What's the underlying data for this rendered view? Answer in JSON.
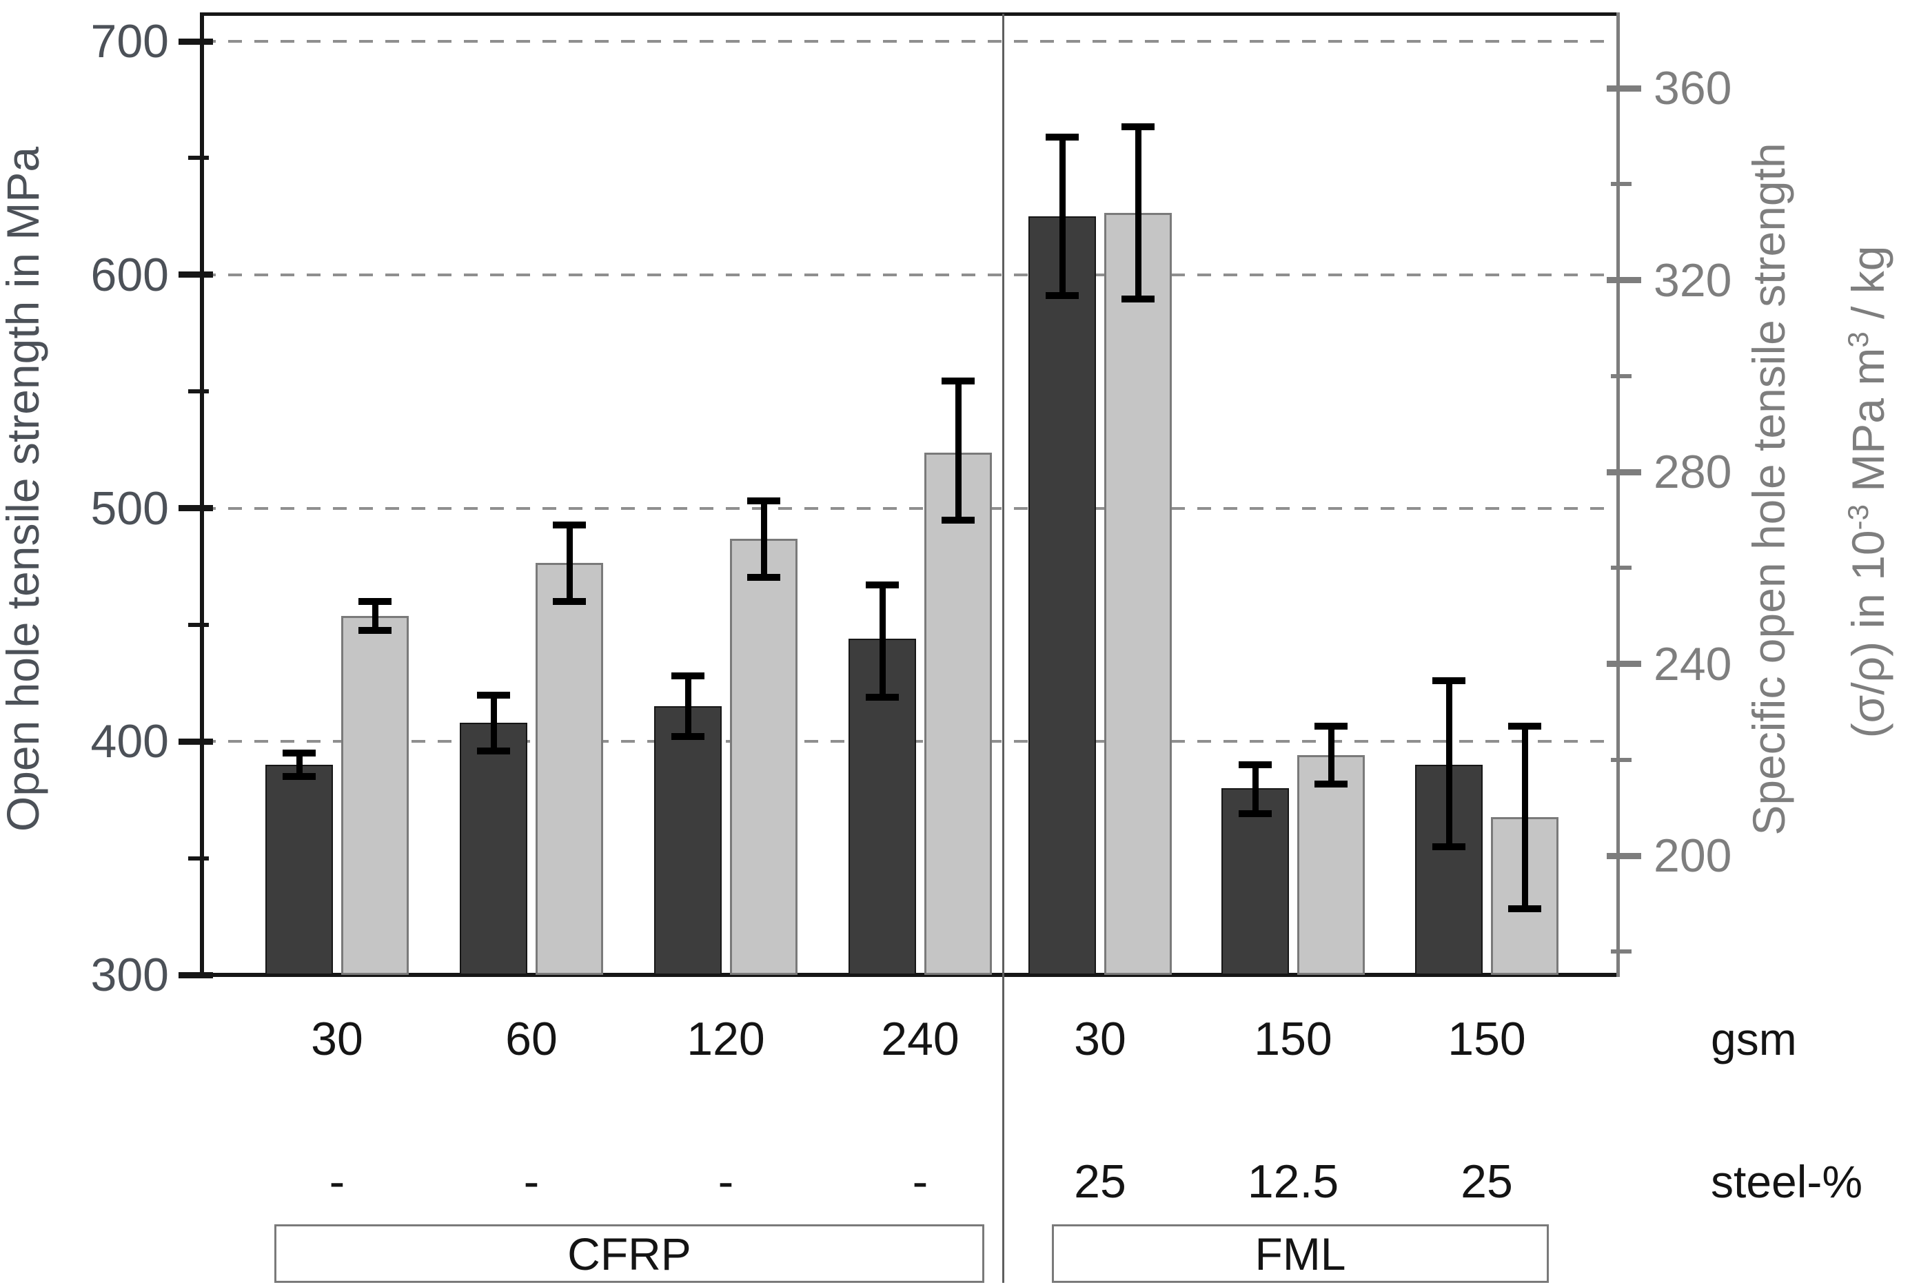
{
  "chart_data": {
    "type": "bar",
    "title": "",
    "left_axis": {
      "label": "Open hole tensile strength in MPa",
      "min": 300,
      "max": 700,
      "major_ticks": [
        300,
        400,
        500,
        600,
        700
      ],
      "minor_ticks": [
        350,
        450,
        550,
        650
      ],
      "gridlines_at": [
        400,
        500,
        600,
        700
      ],
      "grid": "dashed"
    },
    "right_axis": {
      "label_line1": "Specific open hole tensile strength",
      "label_line2_plain": "(σ/ρ) in 10⁻³ MPa m³ / kg",
      "label_line2_parts": {
        "pre": "(σ/ρ) in 10",
        "sup1": "-3",
        "mid": " MPa m",
        "sup2": "3",
        "post": " / kg"
      },
      "major_ticks": [
        200,
        240,
        280,
        320,
        360
      ],
      "minor_ticks": [
        180,
        220,
        260,
        300,
        340
      ]
    },
    "categories": {
      "gsm": [
        "30",
        "60",
        "120",
        "240",
        "30",
        "150",
        "150"
      ],
      "steel_percent": [
        "-",
        "-",
        "-",
        "-",
        "25",
        "12.5",
        "25"
      ]
    },
    "row_labels": {
      "gsm": "gsm",
      "steel": "steel-%"
    },
    "groups": [
      {
        "label": "CFRP",
        "from": 0,
        "to": 3
      },
      {
        "label": "FML",
        "from": 4,
        "to": 6
      }
    ],
    "series": [
      {
        "name": "Open hole tensile strength",
        "axis": "left",
        "color": "#3d3d3d",
        "values": [
          390,
          408,
          415,
          444,
          625,
          380,
          390
        ],
        "err_plus": [
          5,
          12,
          13,
          23,
          34,
          10,
          36
        ],
        "err_minus": [
          5,
          12,
          13,
          25,
          34,
          11,
          35
        ]
      },
      {
        "name": "Specific open hole tensile strength",
        "axis": "right",
        "color": "#c5c5c5",
        "values": [
          250,
          261,
          266,
          284,
          334,
          221,
          208
        ],
        "err_plus": [
          3,
          8,
          8,
          15,
          18,
          6,
          19
        ],
        "err_minus": [
          3,
          8,
          8,
          14,
          18,
          6,
          19
        ]
      }
    ],
    "legend": "none"
  },
  "colors": {
    "dark_bar": "#3d3d3d",
    "light_bar": "#c5c5c5",
    "left_axis": "#161616",
    "right_axis": "#7d7d7d",
    "grid": "#8f8f8f",
    "error_bar": "#000000",
    "left_text": "#4c5158",
    "right_text": "#7e7e7e",
    "x_text": "#141414"
  }
}
